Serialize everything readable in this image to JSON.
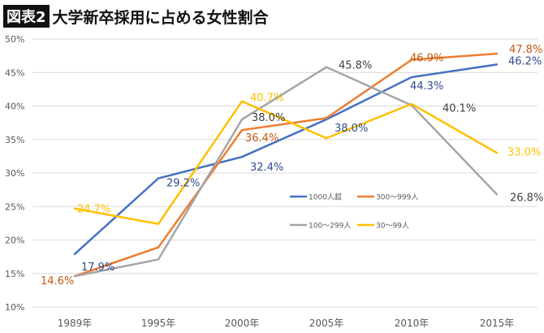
{
  "header": {
    "badge": "図表2",
    "title": "大学新卒採用に占める女性割合"
  },
  "chart_data": {
    "type": "line",
    "categories": [
      "1989年",
      "1995年",
      "2000年",
      "2005年",
      "2010年",
      "2015年"
    ],
    "ylim": [
      10,
      50
    ],
    "yticks": [
      "10%",
      "15%",
      "20%",
      "25%",
      "30%",
      "35%",
      "40%",
      "45%",
      "50%"
    ],
    "grid": true,
    "legend_placement": "center-right",
    "series": [
      {
        "name": "1000人超",
        "color": "#4472C4",
        "label_color": "#2F4B8C",
        "values": [
          17.9,
          29.2,
          32.4,
          38.0,
          44.3,
          46.2
        ],
        "labels": [
          "17.9%",
          "29.2%",
          "32.4%",
          "38.0%",
          "44.3%",
          "46.2%"
        ]
      },
      {
        "name": "300～999人",
        "color": "#ED7D31",
        "label_color": "#C55A11",
        "values": [
          14.6,
          18.9,
          36.4,
          38.2,
          46.9,
          47.8
        ],
        "labels": [
          "14.6%",
          null,
          "36.4%",
          null,
          "46.9%",
          "47.8%"
        ]
      },
      {
        "name": "100～299人",
        "color": "#A5A5A5",
        "label_color": "#404040",
        "values": [
          14.6,
          17.1,
          38.0,
          45.8,
          40.1,
          26.8
        ],
        "labels": [
          null,
          null,
          "38.0%",
          "45.8%",
          "40.1%",
          "26.8%"
        ]
      },
      {
        "name": "30～99人",
        "color": "#FFC000",
        "label_color": "#FFC000",
        "values": [
          24.7,
          22.4,
          40.7,
          35.2,
          40.3,
          33.0
        ],
        "labels": [
          "24.7%",
          null,
          "40.7%",
          null,
          null,
          "33.0%"
        ]
      }
    ]
  }
}
